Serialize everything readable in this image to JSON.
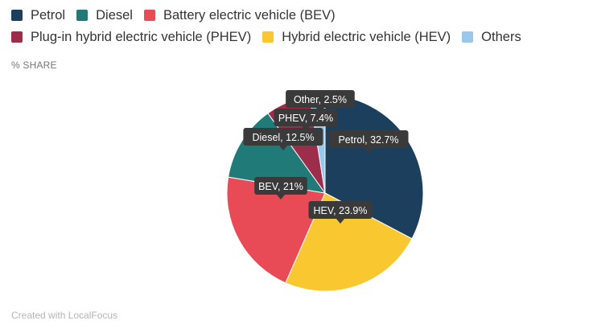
{
  "legend": [
    {
      "label": "Petrol",
      "color": "#1c3f5e"
    },
    {
      "label": "Diesel",
      "color": "#1f7a78"
    },
    {
      "label": "Battery electric vehicle (BEV)",
      "color": "#e84b55"
    },
    {
      "label": "Plug-in hybrid electric vehicle (PHEV)",
      "color": "#9c2d4b"
    },
    {
      "label": "Hybrid electric vehicle (HEV)",
      "color": "#f9c72f"
    },
    {
      "label": "Others",
      "color": "#98c8ea"
    }
  ],
  "unit_label": "% SHARE",
  "footer": "Created with LocalFocus",
  "chart_data": {
    "type": "pie",
    "slices": [
      {
        "label": "Petrol",
        "value": 32.7,
        "color": "#1c3f5e",
        "tooltip": "Petrol, 32.7%"
      },
      {
        "label": "HEV",
        "value": 23.9,
        "color": "#f9c72f",
        "tooltip": "HEV, 23.9%"
      },
      {
        "label": "BEV",
        "value": 21,
        "color": "#e84b55",
        "tooltip": "BEV, 21%"
      },
      {
        "label": "Diesel",
        "value": 12.5,
        "color": "#1f7a78",
        "tooltip": "Diesel, 12.5%"
      },
      {
        "label": "PHEV",
        "value": 7.4,
        "color": "#9c2d4b",
        "tooltip": "PHEV, 7.4%"
      },
      {
        "label": "Other",
        "value": 2.5,
        "color": "#98c8ea",
        "tooltip": "Other, 2.5%"
      }
    ]
  }
}
